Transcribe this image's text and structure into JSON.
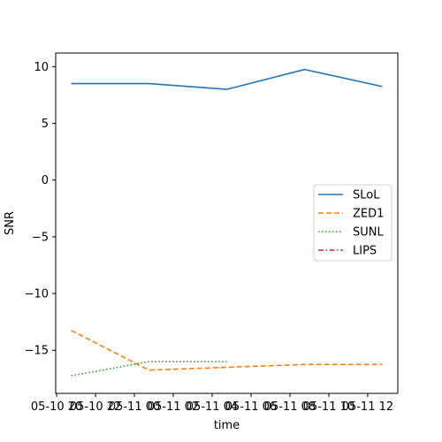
{
  "chart_data": {
    "type": "line",
    "title": "",
    "xlabel": "time",
    "ylabel": "SNR",
    "x_tick_labels": [
      "05-10 20",
      "05-10 22",
      "05-11 00",
      "05-11 02",
      "05-11 04",
      "05-11 06",
      "05-11 08",
      "05-11 10",
      "05-11 12"
    ],
    "y_ticks": [
      -15,
      -10,
      -5,
      0,
      5,
      10
    ],
    "ylim": [
      -18.8,
      11.2
    ],
    "grid": false,
    "legend_position": "center-right",
    "series": [
      {
        "name": "SLoL",
        "color": "#1f77b4",
        "style": "solid",
        "points": [
          {
            "x": "05-10 20:45",
            "y": 8.5
          },
          {
            "x": "05-11 00:45",
            "y": 8.5
          },
          {
            "x": "05-11 04:45",
            "y": 8.0
          },
          {
            "x": "05-11 08:45",
            "y": 9.75
          },
          {
            "x": "05-11 12:45",
            "y": 8.25
          }
        ]
      },
      {
        "name": "ZED1",
        "color": "#ff7f0e",
        "style": "dashed",
        "points": [
          {
            "x": "05-10 20:45",
            "y": -13.25
          },
          {
            "x": "05-11 00:45",
            "y": -16.75
          },
          {
            "x": "05-11 04:45",
            "y": -16.5
          },
          {
            "x": "05-11 08:45",
            "y": -16.25
          },
          {
            "x": "05-11 12:45",
            "y": -16.25
          }
        ]
      },
      {
        "name": "SUNL",
        "color": "#2ca02c",
        "style": "dotted",
        "points": [
          {
            "x": "05-10 20:45",
            "y": -17.25
          },
          {
            "x": "05-11 00:45",
            "y": -16.0
          },
          {
            "x": "05-11 04:45",
            "y": -16.0
          }
        ]
      },
      {
        "name": "LIPS",
        "color": "#d62728",
        "style": "dashdot",
        "points": []
      }
    ]
  }
}
